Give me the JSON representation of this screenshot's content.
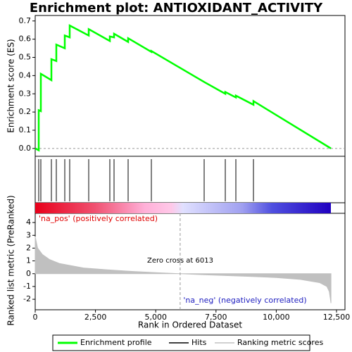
{
  "chart_data": {
    "type": "gsea",
    "title": "Enrichment plot: ANTIOXIDANT_ACTIVITY",
    "xlabel": "Rank in Ordered Dataset",
    "ylabel": "Enrichment score (ES)",
    "y2label": "Ranked list metric (PreRanked)",
    "xlim": [
      0,
      12850
    ],
    "xticks": [
      0,
      {
        "value": 2500,
        "label": "2,500"
      },
      {
        "value": 5000,
        "label": "5,000"
      },
      {
        "value": 7500,
        "label": "7,500"
      },
      {
        "value": 10000,
        "label": "10,000"
      },
      {
        "value": 12500,
        "label": "12,500"
      }
    ],
    "ylim": [
      -0.043,
      0.73
    ],
    "yticks": [
      {
        "value": 0,
        "label": "0.0"
      },
      0.1,
      0.2,
      0.3,
      0.4,
      0.5,
      0.6,
      0.7
    ],
    "y2lim": [
      -2.82,
      4.72
    ],
    "y2ticks": [
      -2,
      -1,
      0,
      1,
      2,
      3,
      4
    ],
    "es": {
      "name": "Enrichment profile",
      "color": "#00ff00",
      "x": [
        0,
        146,
        146,
        234,
        234,
        672,
        672,
        876,
        876,
        1227,
        1227,
        1431,
        1431,
        2220,
        2220,
        3096,
        3096,
        3271,
        3271,
        3855,
        3855,
        4819,
        4819,
        7009,
        7886,
        7886,
        8324,
        8324,
        9054,
        9054,
        12270
      ],
      "values": [
        0,
        -0.01,
        0.21,
        0.205,
        0.41,
        0.375,
        0.49,
        0.48,
        0.57,
        0.55,
        0.62,
        0.61,
        0.675,
        0.62,
        0.655,
        0.59,
        0.615,
        0.61,
        0.63,
        0.585,
        0.605,
        0.53,
        0.535,
        0.365,
        0.3,
        0.31,
        0.28,
        0.29,
        0.24,
        0.26,
        0.0
      ]
    },
    "hits": {
      "name": "Hits",
      "color": "#000000",
      "x": [
        146,
        234,
        672,
        876,
        1227,
        1431,
        2220,
        3096,
        3271,
        3855,
        4819,
        7009,
        7886,
        8324,
        9054
      ]
    },
    "metric": {
      "name": "Ranking metric scores",
      "color": "#c0c0c0",
      "x": [
        0,
        100,
        300,
        600,
        1000,
        2000,
        3000,
        4000,
        5000,
        6013,
        7000,
        8000,
        9000,
        10000,
        11000,
        11800,
        12100,
        12200,
        12270
      ],
      "values": [
        2.9,
        2.0,
        1.5,
        1.1,
        0.8,
        0.45,
        0.3,
        0.18,
        0.08,
        0,
        -0.08,
        -0.15,
        -0.22,
        -0.3,
        -0.45,
        -0.7,
        -1.0,
        -1.4,
        -2.3
      ]
    },
    "zero_cross": 6013,
    "annotations": [
      "'na_pos' (positively correlated)",
      "Zero cross at 6013",
      "'na_neg' (negatively correlated)"
    ]
  }
}
